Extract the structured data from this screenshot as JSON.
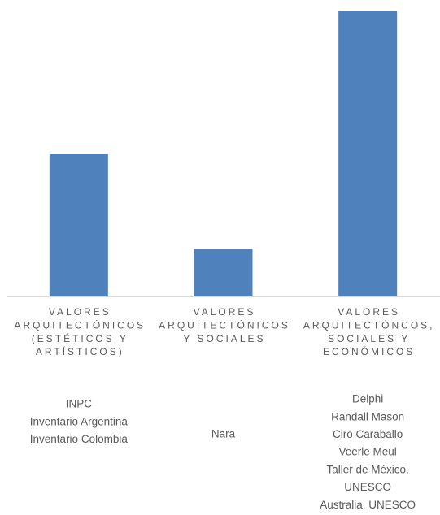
{
  "chart_data": {
    "type": "bar",
    "categories": [
      [
        "VALORES",
        "ARQUITECTÓNICOS",
        "(ESTÉTICOS Y",
        "ARTÍSTICOS)"
      ],
      [
        "VALORES",
        "ARQUITECTÓNICOS",
        "Y SOCIALES"
      ],
      [
        "VALORES",
        "ARQUITECTÓNCOS,",
        "SOCIALES Y",
        "ECONÓMICOS"
      ]
    ],
    "values": [
      3,
      1,
      6
    ],
    "color": "#4f81bd",
    "ylim": [
      0,
      6
    ],
    "sources": [
      [
        "INPC",
        "Inventario Argentina",
        "Inventario Colombia"
      ],
      [
        "Nara"
      ],
      [
        "Delphi",
        "Randall Mason",
        "Ciro Caraballo",
        "Veerle Meul",
        "Taller de México.",
        "UNESCO",
        "Australia. UNESCO"
      ]
    ]
  }
}
